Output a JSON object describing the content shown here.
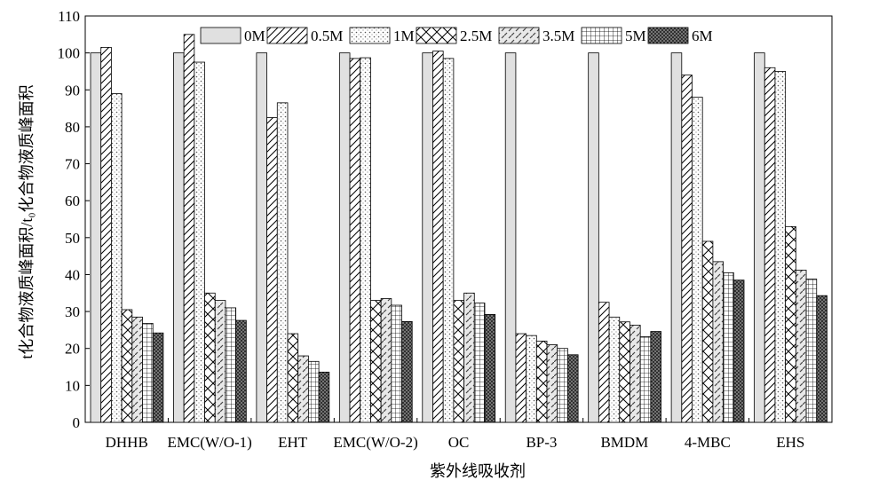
{
  "chart_data": {
    "type": "bar",
    "xlabel": "紫外线吸收剂",
    "ylabel": "t化合物液质峰面积/t₀化合物液质峰面积",
    "ylim": [
      0,
      110
    ],
    "yticks": [
      0,
      10,
      20,
      30,
      40,
      50,
      60,
      70,
      80,
      90,
      100,
      110
    ],
    "legend_position": "top-right",
    "categories": [
      "DHHB",
      "EMC(W/O-1)",
      "EHT",
      "EMC(W/O-2)",
      "OC",
      "BP-3",
      "BMDM",
      "4-MBC",
      "EHS"
    ],
    "series": [
      {
        "name": "0M",
        "pattern": "plain-gray",
        "values": [
          100,
          100,
          100,
          100,
          100,
          100,
          100,
          100,
          100
        ]
      },
      {
        "name": "0.5M",
        "pattern": "diagonal",
        "values": [
          101.5,
          105,
          82.5,
          98.5,
          100.5,
          24,
          32.5,
          94,
          96
        ]
      },
      {
        "name": "1M",
        "pattern": "dotted",
        "values": [
          89,
          97.5,
          86.5,
          98.7,
          98.5,
          23.5,
          28.5,
          88,
          95
        ]
      },
      {
        "name": "2.5M",
        "pattern": "crosshatch-diagonal",
        "values": [
          30.5,
          35,
          24,
          33,
          33,
          22,
          27.2,
          49,
          53
        ]
      },
      {
        "name": "3.5M",
        "pattern": "dashed-diagonal",
        "values": [
          28.5,
          33,
          18,
          33.5,
          35,
          21,
          26.3,
          43.5,
          41.2
        ]
      },
      {
        "name": "5M",
        "pattern": "grid",
        "values": [
          26.8,
          31,
          16.5,
          31.7,
          32.3,
          20,
          23.2,
          40.5,
          38.8
        ]
      },
      {
        "name": "6M",
        "pattern": "dense-crosshatch",
        "values": [
          24.2,
          27.6,
          13.6,
          27.3,
          29.2,
          18.3,
          24.6,
          38.5,
          34.3
        ]
      }
    ]
  }
}
